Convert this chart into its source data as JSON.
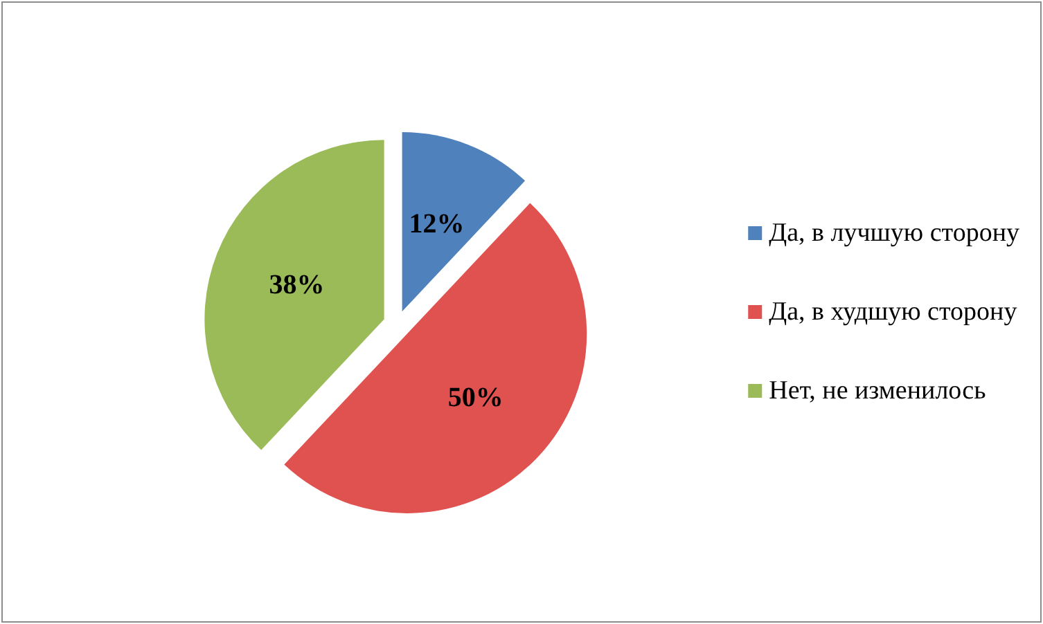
{
  "chart_data": {
    "type": "pie",
    "categories": [
      "Да, в лучшую сторону",
      "Да, в худшую сторону",
      "Нет, не изменилось"
    ],
    "values": [
      12,
      50,
      38
    ],
    "colors": [
      "#4f81bd",
      "#e05250",
      "#9bbb59"
    ],
    "value_labels": [
      "12%",
      "50%",
      "38%"
    ],
    "legend": "right"
  }
}
